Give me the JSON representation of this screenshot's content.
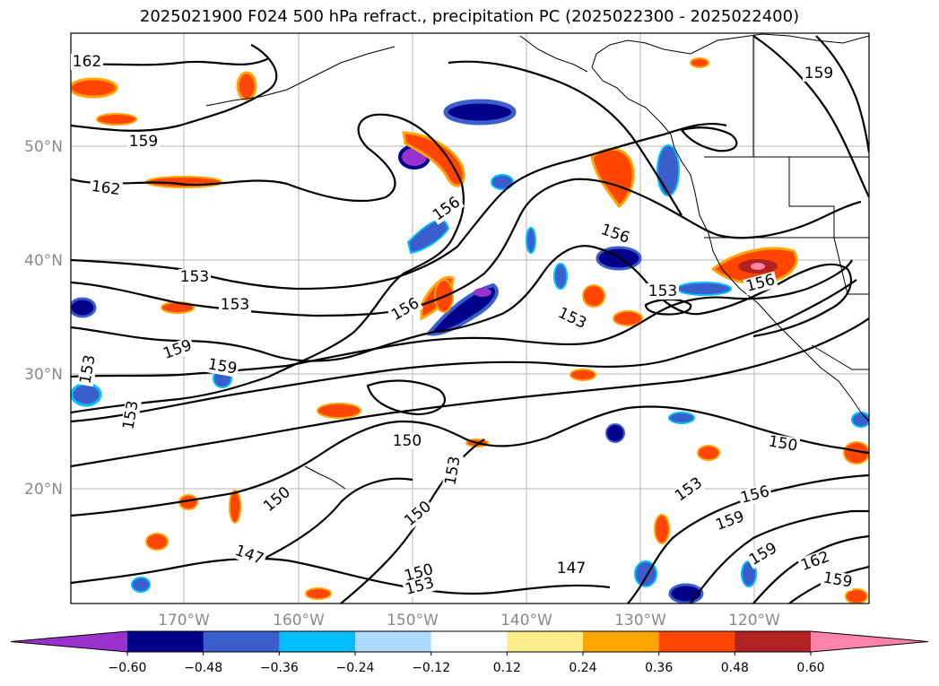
{
  "title": "2025021900 F024 500 hPa refract., precipitation PC (2025022300 - 2025022400)",
  "map": {
    "lat_labels": [
      "50°N",
      "40°N",
      "30°N",
      "20°N"
    ],
    "lon_labels": [
      "170°W",
      "160°W",
      "150°W",
      "140°W",
      "130°W",
      "120°W"
    ]
  },
  "contour_labels": [
    "162",
    "159",
    "162",
    "156",
    "156",
    "159",
    "153",
    "153",
    "156",
    "153",
    "156",
    "153",
    "159",
    "159",
    "153",
    "153",
    "150",
    "150",
    "153",
    "150",
    "150",
    "153",
    "156",
    "159",
    "147",
    "147",
    "150",
    "153",
    "159",
    "162",
    "159"
  ],
  "colorbar": {
    "colors": [
      "#9932cc",
      "#00008b",
      "#3a5fcd",
      "#00bfff",
      "#add8ff",
      "#ffffff",
      "#ffec8b",
      "#ffa500",
      "#ff4500",
      "#b22222",
      "#ff82ab"
    ],
    "ticks": [
      "−0.60",
      "−0.48",
      "−0.36",
      "−0.24",
      "−0.12",
      "0.12",
      "0.24",
      "0.36",
      "0.48",
      "0.60"
    ]
  }
}
